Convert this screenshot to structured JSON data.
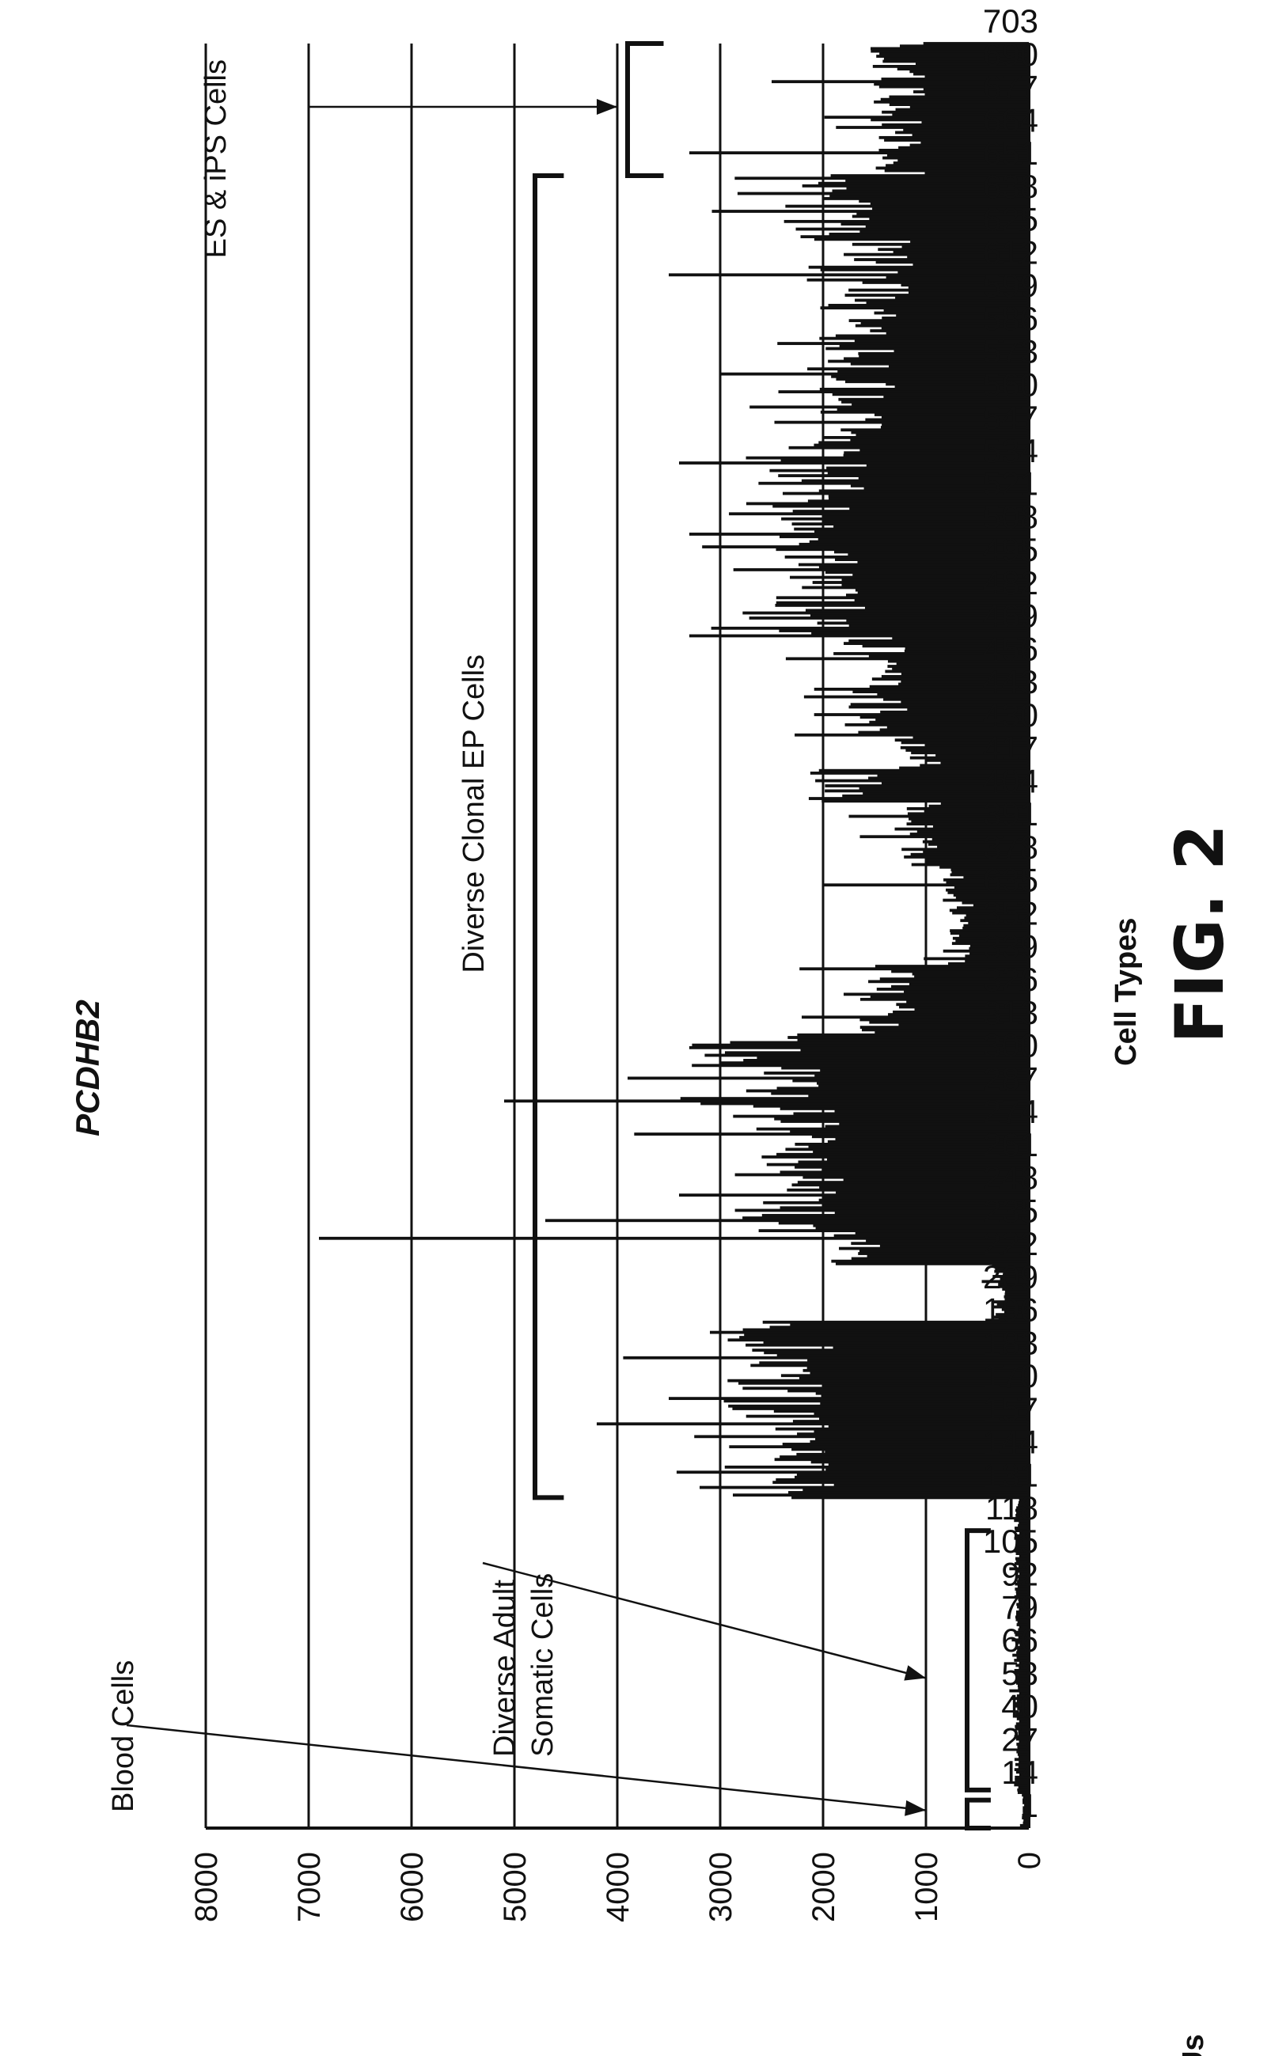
{
  "chart_data": {
    "type": "bar",
    "orientation": "rotated",
    "title": "PCDHB2",
    "xlabel": "Cell Types",
    "ylabel": "RFUs",
    "ylim": [
      0,
      8000
    ],
    "yticks": [
      0,
      1000,
      2000,
      3000,
      4000,
      5000,
      6000,
      7000,
      8000
    ],
    "ytick_labels": [
      "0",
      "1000",
      "2000",
      "3000",
      "4000",
      "5000",
      "6000",
      "7000",
      "8000"
    ],
    "xtick_labels": [
      "1",
      "14",
      "27",
      "40",
      "53",
      "66",
      "79",
      "92",
      "105",
      "118",
      "131",
      "144",
      "157",
      "170",
      "183",
      "196",
      "209",
      "222",
      "235",
      "248",
      "261",
      "274",
      "287",
      "300",
      "313",
      "326",
      "339",
      "352",
      "635",
      "378",
      "391",
      "404",
      "417",
      "430",
      "443",
      "456",
      "469",
      "482",
      "495",
      "508",
      "521",
      "534",
      "547",
      "560",
      "573",
      "586",
      "599",
      "612",
      "625",
      "638",
      "651",
      "664",
      "677",
      "690",
      "703"
    ],
    "grid": true,
    "bar_color": "#111111",
    "segment_levels": [
      {
        "categories": "1-14",
        "level": 60
      },
      {
        "categories": "14-130",
        "level": 120
      },
      {
        "categories": "131-200",
        "level": 2500
      },
      {
        "categories": "200-222",
        "level": 300
      },
      {
        "categories": "222-235",
        "level": 1700
      },
      {
        "categories": "235-300",
        "level": 2400
      },
      {
        "categories": "300-313",
        "level": 2800
      },
      {
        "categories": "313-340",
        "level": 1400
      },
      {
        "categories": "340-378",
        "level": 700
      },
      {
        "categories": "378-404",
        "level": 1100
      },
      {
        "categories": "404-417",
        "level": 1800
      },
      {
        "categories": "417-430",
        "level": 1100
      },
      {
        "categories": "430-470",
        "level": 1500
      },
      {
        "categories": "470-547",
        "level": 2100
      },
      {
        "categories": "547-600",
        "level": 1700
      },
      {
        "categories": "600-625",
        "level": 1500
      },
      {
        "categories": "625-651",
        "level": 2000
      },
      {
        "categories": "651-703",
        "level": 1300
      }
    ],
    "peaks": [
      {
        "category": 135,
        "value": 3200
      },
      {
        "category": 160,
        "value": 4200
      },
      {
        "category": 170,
        "value": 3500
      },
      {
        "category": 196,
        "value": 3100
      },
      {
        "category": 233,
        "value": 6900
      },
      {
        "category": 240,
        "value": 4700
      },
      {
        "category": 250,
        "value": 3400
      },
      {
        "category": 287,
        "value": 5100
      },
      {
        "category": 296,
        "value": 3900
      },
      {
        "category": 372,
        "value": 2000
      },
      {
        "category": 470,
        "value": 3300
      },
      {
        "category": 510,
        "value": 3300
      },
      {
        "category": 538,
        "value": 3400
      },
      {
        "category": 573,
        "value": 3000
      },
      {
        "category": 612,
        "value": 3500
      },
      {
        "category": 660,
        "value": 3300
      },
      {
        "category": 688,
        "value": 2500
      }
    ],
    "annotations": [
      {
        "text": "Blood Cells",
        "target_category": 8,
        "target_value": 1000
      },
      {
        "text": "Diverse Adult Somatic Cells",
        "lines": [
          "Diverse Adult",
          "Somatic Cells"
        ],
        "target_category": 60,
        "target_value": 1000,
        "bracket": [
          14,
          118
        ]
      },
      {
        "text": "Diverse Clonal EP Cells",
        "bracket": [
          131,
          651
        ]
      },
      {
        "text": "ES & iPS Cells",
        "target_category": 673,
        "target_value": 4000,
        "bracket": [
          651,
          703
        ]
      }
    ]
  },
  "figure_label": "FIG. 2"
}
